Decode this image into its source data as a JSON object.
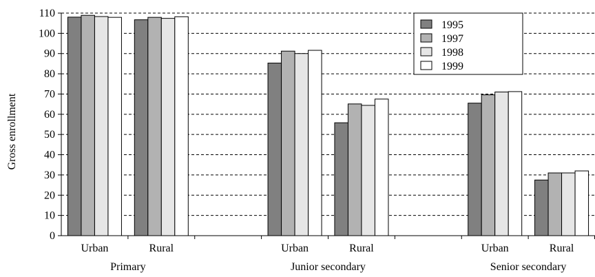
{
  "chart_data": {
    "type": "bar",
    "ylabel": "Gross enrollment",
    "ylim": [
      0,
      110
    ],
    "yticks": [
      "0",
      "10",
      "20",
      "30",
      "40",
      "50",
      "60",
      "70",
      "80",
      "90",
      "100",
      "110"
    ],
    "grid": "horizontal-dashed",
    "legend_position": "top-right",
    "groups": [
      {
        "label": "Primary",
        "slots": [
          "Urban",
          "Rural",
          ""
        ]
      },
      {
        "label": "Junior secondary",
        "slots": [
          "Urban",
          "Rural",
          ""
        ]
      },
      {
        "label": "Senior secondary",
        "slots": [
          "Urban",
          "Rural"
        ]
      }
    ],
    "categories": [
      "Urban",
      "Rural",
      "",
      "Urban",
      "Rural",
      "",
      "Urban",
      "Rural"
    ],
    "series": [
      {
        "name": "1995",
        "color": "#808080",
        "values": [
          108,
          106.7,
          null,
          85.3,
          55.8,
          null,
          65.5,
          27.5
        ]
      },
      {
        "name": "1997",
        "color": "#b2b2b2",
        "values": [
          108.9,
          107.9,
          null,
          91.2,
          65.1,
          null,
          69.6,
          31
        ]
      },
      {
        "name": "1998",
        "color": "#e6e6e6",
        "values": [
          108.3,
          107.4,
          null,
          90,
          64.4,
          null,
          71,
          31
        ]
      },
      {
        "name": "1999",
        "color": "#ffffff",
        "values": [
          107.9,
          108.2,
          null,
          91.6,
          67.5,
          null,
          71.2,
          32
        ]
      }
    ]
  }
}
